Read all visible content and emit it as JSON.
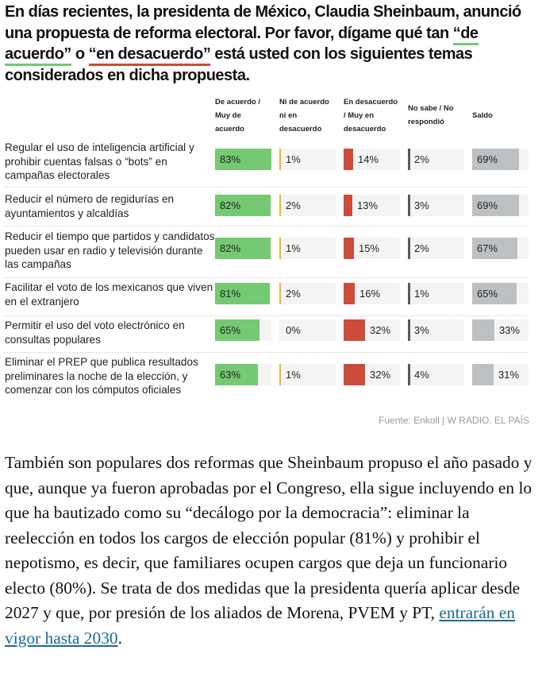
{
  "title": {
    "part1": "En días recientes, la presidenta de México, Claudia Sheinbaum, anunció una propuesta de reforma electoral. Por favor, dígame qué tan ",
    "agree_term": "“de acuerdo”",
    "connector": " o ",
    "disagree_term": "“en desacuerdo”",
    "part2": " está usted con los siguientes temas considerados en dicha propuesta."
  },
  "colors": {
    "agree": "#75c972",
    "neutral": "#e8b92a",
    "disagree": "#cc4b3b",
    "no_answer": "#555b60",
    "saldo": "#bcc0c3",
    "cell_bg": "#f4f4f4"
  },
  "chart_data": {
    "type": "table",
    "title": "En días recientes, la presidenta de México, Claudia Sheinbaum, anunció una propuesta de reforma electoral. Por favor, dígame qué tan “de acuerdo” o “en desacuerdo” está usted con los siguientes temas considerados en dicha propuesta.",
    "columns": [
      "De acuerdo / Muy de acuerdo",
      "Ni de acuerdo ni en desacuerdo",
      "En desacuerdo / Muy en desacuerdo",
      "No sabe / No respondió",
      "Saldo"
    ],
    "scale_max": 83,
    "unit": "%",
    "rows": [
      {
        "label": "Regular el uso de inteligencia artificial y prohibir cuentas falsas o “bots” en campañas electorales",
        "values": [
          83,
          1,
          14,
          2,
          69
        ]
      },
      {
        "label": "Reducir el número de regidurías en ayuntamientos y alcaldías",
        "values": [
          82,
          2,
          13,
          3,
          69
        ]
      },
      {
        "label": "Reducir el tiempo que partidos y candidatos pueden usar en radio y televisión durante las campañas",
        "values": [
          82,
          1,
          15,
          2,
          67
        ]
      },
      {
        "label": "Facilitar el voto de los mexicanos que viven en el extranjero",
        "values": [
          81,
          2,
          16,
          1,
          65
        ]
      },
      {
        "label": "Permitir el uso del voto electrónico en consultas populares",
        "values": [
          65,
          0,
          32,
          3,
          33
        ]
      },
      {
        "label": "Eliminar el PREP que publica resultados preliminares la noche de la elección, y comenzar con los cómputos oficiales",
        "values": [
          63,
          1,
          32,
          4,
          31
        ]
      }
    ]
  },
  "source": "Fuente: Enkoll | W RADIO. EL PAÍS",
  "article": {
    "text": "También son populares dos reformas que Sheinbaum propuso el año pasado y que, aunque ya fueron aprobadas por el Congreso, ella sigue incluyendo en lo que ha bautizado como su “decálogo por la democracia”: eliminar la reelección en todos los cargos de elección popular (81%) y prohibir el nepotismo, es decir, que familiares ocupen cargos que deja un funcionario electo (80%). Se trata de dos medidas que la presidenta quería aplicar desde 2027 y que, por presión de los aliados de Morena, PVEM y PT, ",
    "link_text": "entrarán en vigor hasta 2030",
    "end": "."
  }
}
